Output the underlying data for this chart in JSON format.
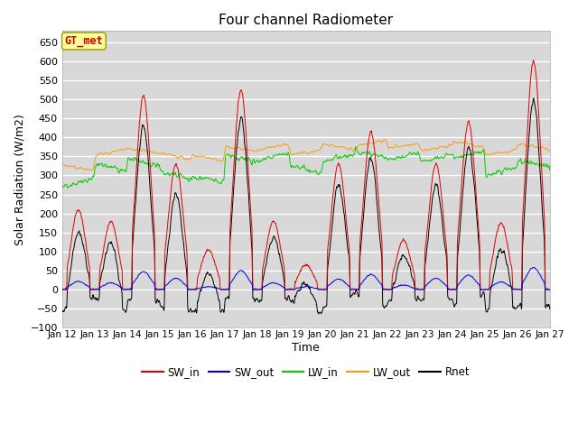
{
  "title": "Four channel Radiometer",
  "xlabel": "Time",
  "ylabel": "Solar Radiation (W/m2)",
  "ylim": [
    -100,
    680
  ],
  "yticks": [
    -100,
    -50,
    0,
    50,
    100,
    150,
    200,
    250,
    300,
    350,
    400,
    450,
    500,
    550,
    600,
    650
  ],
  "date_labels": [
    "Jan 12",
    "Jan 13",
    "Jan 14",
    "Jan 15",
    "Jan 16",
    "Jan 17",
    "Jan 18",
    "Jan 19",
    "Jan 20",
    "Jan 21",
    "Jan 22",
    "Jan 23",
    "Jan 24",
    "Jan 25",
    "Jan 26",
    "Jan 27"
  ],
  "num_days": 15,
  "points_per_day": 144,
  "colors": {
    "SW_in": "#dd0000",
    "SW_out": "#0000dd",
    "LW_in": "#00cc00",
    "LW_out": "#ff9900",
    "Rnet": "#000000"
  },
  "annotation_label": "GT_met",
  "annotation_color": "#cc0000",
  "annotation_bg": "#ffff99",
  "plot_bg_color": "#d8d8d8",
  "grid_color": "#ffffff",
  "fig_bg_color": "#ffffff"
}
